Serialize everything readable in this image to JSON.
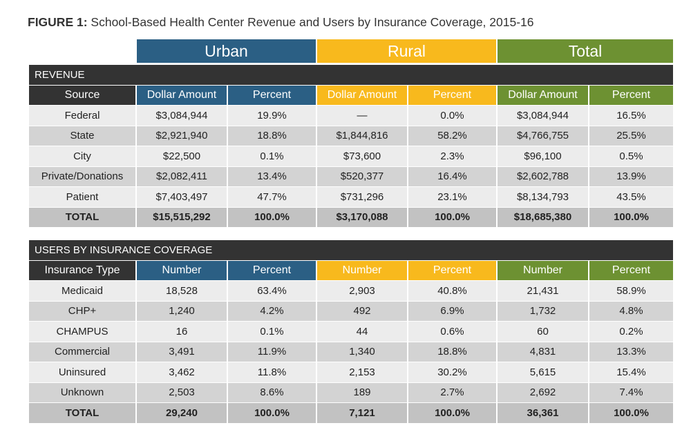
{
  "title_prefix": "FIGURE 1:",
  "title_text": "School-Based Health Center Revenue and Users by Insurance Coverage, 2015-16",
  "groups": [
    "Urban",
    "Rural",
    "Total"
  ],
  "colors": {
    "urban": "#2b5f84",
    "rural": "#f8b91d",
    "total": "#6d9132",
    "dark": "#333333"
  },
  "revenue": {
    "section_title": "REVENUE",
    "headers": [
      "Source",
      "Dollar Amount",
      "Percent",
      "Dollar Amount",
      "Percent",
      "Dollar Amount",
      "Percent"
    ],
    "rows": [
      [
        "Federal",
        "$3,084,944",
        "19.9%",
        "—",
        "0.0%",
        "$3,084,944",
        "16.5%"
      ],
      [
        "State",
        "$2,921,940",
        "18.8%",
        "$1,844,816",
        "58.2%",
        "$4,766,755",
        "25.5%"
      ],
      [
        "City",
        "$22,500",
        "0.1%",
        "$73,600",
        "2.3%",
        "$96,100",
        "0.5%"
      ],
      [
        "Private/Donations",
        "$2,082,411",
        "13.4%",
        "$520,377",
        "16.4%",
        "$2,602,788",
        "13.9%"
      ],
      [
        "Patient",
        "$7,403,497",
        "47.7%",
        "$731,296",
        "23.1%",
        "$8,134,793",
        "43.5%"
      ],
      [
        "TOTAL",
        "$15,515,292",
        "100.0%",
        "$3,170,088",
        "100.0%",
        "$18,685,380",
        "100.0%"
      ]
    ]
  },
  "users": {
    "section_title": "USERS BY INSURANCE COVERAGE",
    "headers": [
      "Insurance Type",
      "Number",
      "Percent",
      "Number",
      "Percent",
      "Number",
      "Percent"
    ],
    "rows": [
      [
        "Medicaid",
        "18,528",
        "63.4%",
        "2,903",
        "40.8%",
        "21,431",
        "58.9%"
      ],
      [
        "CHP+",
        "1,240",
        "4.2%",
        "492",
        "6.9%",
        "1,732",
        "4.8%"
      ],
      [
        "CHAMPUS",
        "16",
        "0.1%",
        "44",
        "0.6%",
        "60",
        "0.2%"
      ],
      [
        "Commercial",
        "3,491",
        "11.9%",
        "1,340",
        "18.8%",
        "4,831",
        "13.3%"
      ],
      [
        "Uninsured",
        "3,462",
        "11.8%",
        "2,153",
        "30.2%",
        "5,615",
        "15.4%"
      ],
      [
        "Unknown",
        "2,503",
        "8.6%",
        "189",
        "2.7%",
        "2,692",
        "7.4%"
      ],
      [
        "TOTAL",
        "29,240",
        "100.0%",
        "7,121",
        "100.0%",
        "36,361",
        "100.0%"
      ]
    ]
  }
}
